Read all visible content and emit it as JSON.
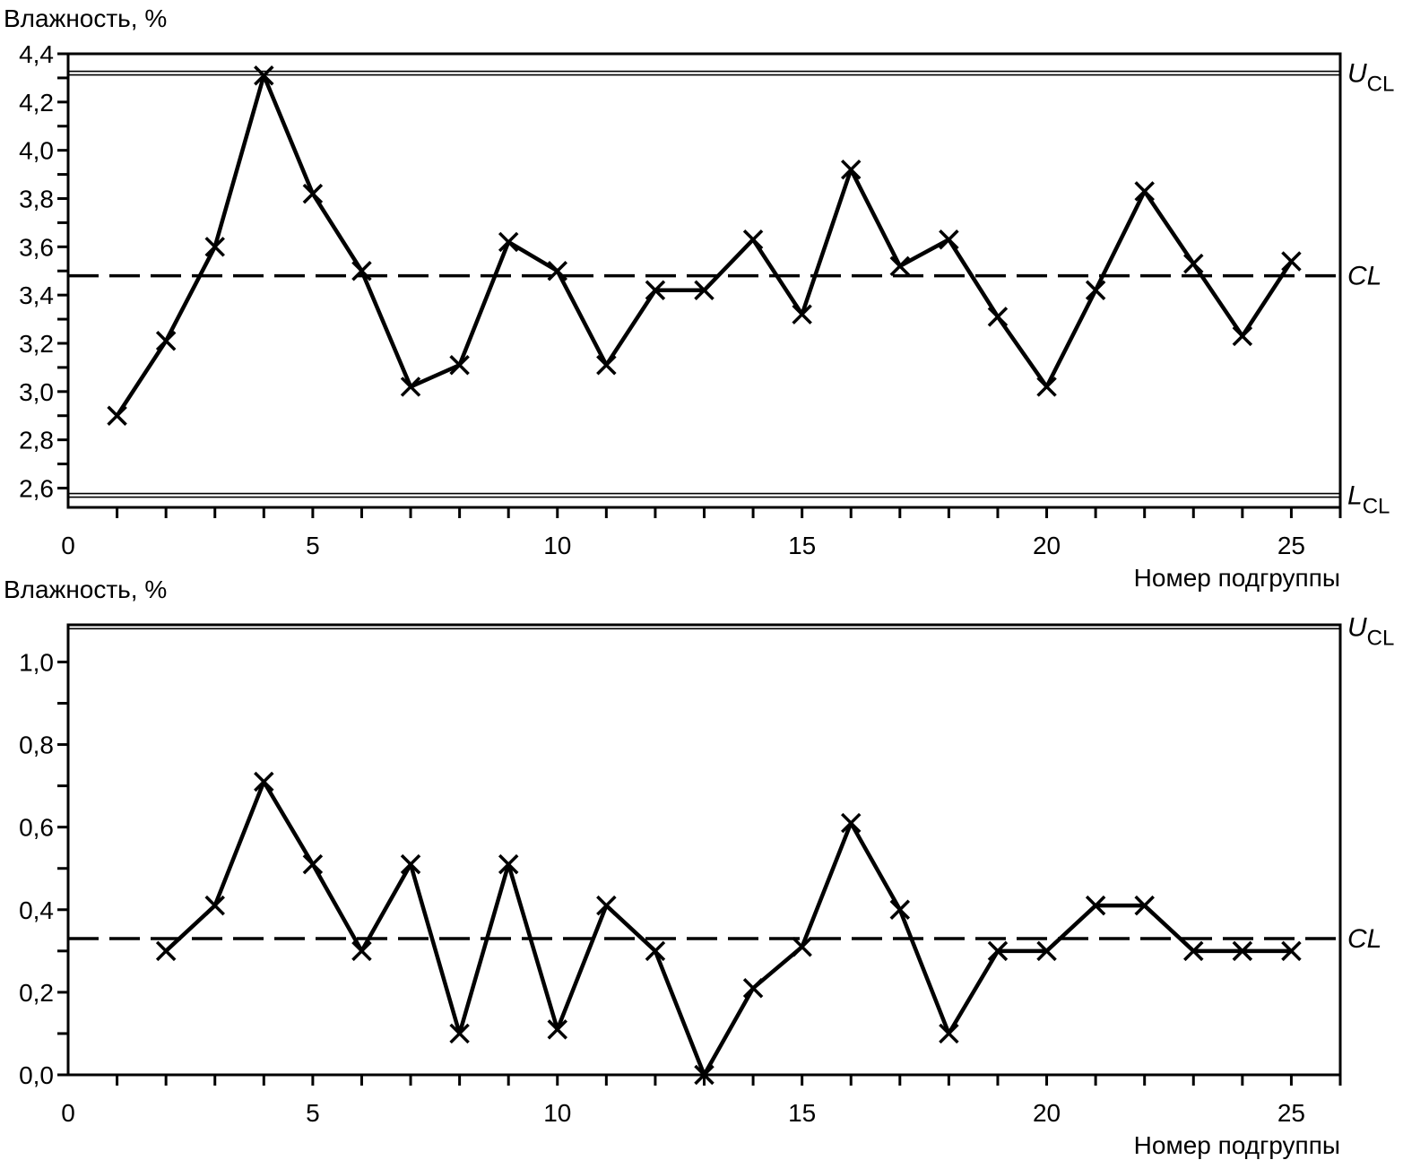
{
  "chart_data": [
    {
      "type": "line",
      "ylabel": "Влажность, %",
      "xlabel": "Номер подгруппы",
      "xlim": [
        0,
        26
      ],
      "ylim": [
        2.52,
        4.4
      ],
      "x_ticks": [
        "0",
        "5",
        "10",
        "15",
        "20",
        "25"
      ],
      "y_ticks": [
        "2,6",
        "2,8",
        "3,0",
        "3,2",
        "3,4",
        "3,6",
        "3,8",
        "4,0",
        "4,2",
        "4,4"
      ],
      "x": [
        1,
        2,
        3,
        4,
        5,
        6,
        7,
        8,
        9,
        10,
        11,
        12,
        13,
        14,
        15,
        16,
        17,
        18,
        19,
        20,
        21,
        22,
        23,
        24,
        25
      ],
      "values": [
        2.9,
        3.21,
        3.6,
        4.31,
        3.82,
        3.5,
        3.02,
        3.11,
        3.62,
        3.5,
        3.11,
        3.42,
        3.42,
        3.63,
        3.32,
        3.92,
        3.52,
        3.63,
        3.31,
        3.02,
        3.42,
        3.83,
        3.53,
        3.23,
        3.54
      ],
      "control_lines": [
        {
          "name": "U",
          "sub": "CL",
          "italic": true,
          "value": 4.32,
          "style": "solid"
        },
        {
          "name": "CL",
          "sub": "",
          "italic": true,
          "value": 3.48,
          "style": "dashed"
        },
        {
          "name": "L",
          "sub": "CL",
          "italic": true,
          "value": 2.57,
          "style": "solid"
        }
      ],
      "marker": "x",
      "grid": false
    },
    {
      "type": "line",
      "ylabel": "Влажность, %",
      "xlabel": "Номер подгруппы",
      "xlim": [
        0,
        26
      ],
      "ylim": [
        0.0,
        1.09
      ],
      "x_ticks": [
        "0",
        "5",
        "10",
        "15",
        "20",
        "25"
      ],
      "y_ticks": [
        "0,0",
        "0,2",
        "0,4",
        "0,6",
        "0,8",
        "1,0"
      ],
      "x": [
        2,
        3,
        4,
        5,
        6,
        7,
        8,
        9,
        10,
        11,
        12,
        13,
        14,
        15,
        16,
        17,
        18,
        19,
        20,
        21,
        22,
        23,
        24,
        25
      ],
      "values": [
        0.3,
        0.41,
        0.71,
        0.51,
        0.3,
        0.51,
        0.1,
        0.51,
        0.11,
        0.41,
        0.3,
        0.0,
        0.21,
        0.31,
        0.61,
        0.4,
        0.1,
        0.3,
        0.3,
        0.41,
        0.41,
        0.3,
        0.3,
        0.3
      ],
      "control_lines": [
        {
          "name": "U",
          "sub": "CL",
          "italic": true,
          "value": 1.085,
          "style": "solid"
        },
        {
          "name": "CL",
          "sub": "",
          "italic": true,
          "value": 0.33,
          "style": "dashed"
        }
      ],
      "marker": "x",
      "grid": false
    }
  ]
}
